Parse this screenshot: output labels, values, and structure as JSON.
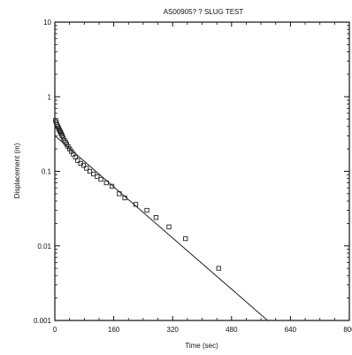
{
  "chart_data": {
    "type": "scatter",
    "title": "AS00905? ?   SLUG TEST",
    "xlabel": "Time (sec)",
    "ylabel": "Displacement (m)",
    "xlim": [
      0,
      800
    ],
    "ylim": [
      0.001,
      10
    ],
    "yscale": "log",
    "grid": false,
    "legend": "none",
    "x_ticks": [
      0,
      160,
      320,
      480,
      640,
      800
    ],
    "x_tick_labels": [
      "0",
      "160",
      "320",
      "480",
      "640",
      "800"
    ],
    "y_ticks": [
      10,
      1,
      0.1,
      0.01,
      0.001
    ],
    "y_tick_labels": [
      "10",
      "1",
      "0.1",
      "0.01",
      "0.001"
    ],
    "series": [
      {
        "marker": "open-square",
        "x": [
          2,
          4,
          6,
          8,
          10,
          12,
          14,
          16,
          18,
          20,
          23,
          26,
          29,
          32,
          36,
          40,
          45,
          50,
          56,
          62,
          70,
          78,
          86,
          95,
          105,
          115,
          125,
          140,
          155,
          175,
          190,
          220,
          250,
          275,
          310,
          355,
          445
        ],
        "y": [
          0.48,
          0.45,
          0.42,
          0.4,
          0.38,
          0.36,
          0.345,
          0.33,
          0.315,
          0.3,
          0.28,
          0.26,
          0.245,
          0.23,
          0.215,
          0.2,
          0.185,
          0.17,
          0.155,
          0.14,
          0.128,
          0.12,
          0.11,
          0.1,
          0.092,
          0.085,
          0.078,
          0.07,
          0.063,
          0.05,
          0.044,
          0.036,
          0.03,
          0.024,
          0.018,
          0.0125,
          0.005
        ]
      },
      {
        "type": "line",
        "x": [
          0,
          578
        ],
        "y": [
          0.3,
          0.001
        ]
      }
    ]
  }
}
